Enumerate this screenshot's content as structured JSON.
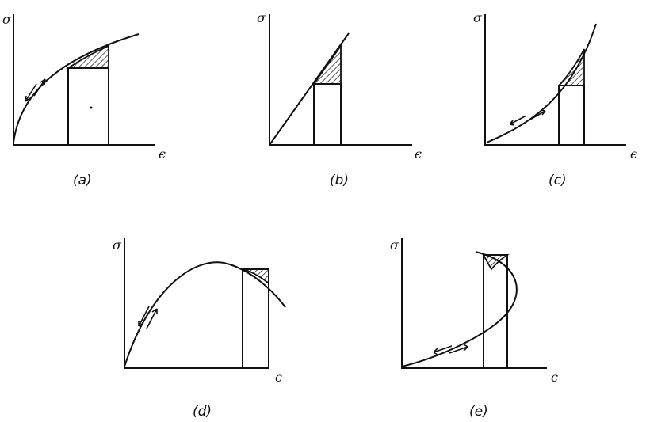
{
  "panels": [
    {
      "y_label": "σ",
      "x_label": "ϵ",
      "caption": "(a)"
    },
    {
      "y_label": "σ",
      "x_label": "ϵ",
      "caption": "(b)"
    },
    {
      "y_label": "σ",
      "x_label": "ϵ",
      "caption": "(c)"
    },
    {
      "y_label": "σ",
      "x_label": "ϵ",
      "caption": "(d)"
    },
    {
      "y_label": "σ",
      "x_label": "ϵ",
      "caption": "(e)"
    }
  ]
}
